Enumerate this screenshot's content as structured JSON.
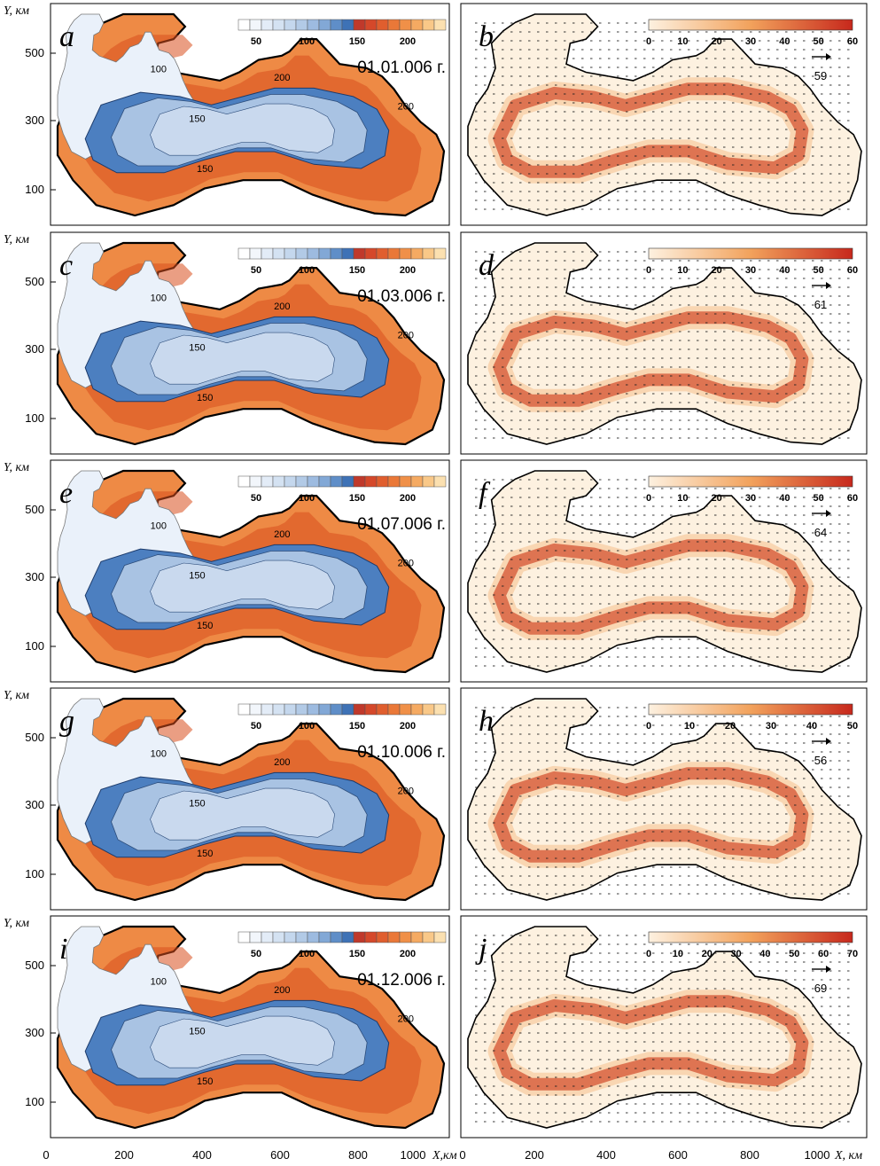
{
  "figure": {
    "y_axis_label": "Y, км",
    "x_axis_label_left": "X,км",
    "x_axis_label_right": "X, км",
    "x_ticks": [
      "0",
      "200",
      "400",
      "600",
      "800",
      "1000"
    ],
    "y_ticks": [
      "500",
      "300",
      "100"
    ]
  },
  "colors": {
    "cold": "#eaf1fa",
    "mid_blue": "#a9c3e3",
    "deep_blue": "#4c7fc0",
    "orange_dark": "#d94f1e",
    "orange": "#ee8a45",
    "orange_light": "#f6b878",
    "speed_low": "#fdf1e0",
    "speed_mid": "#f2a25c",
    "speed_high": "#c7281c"
  },
  "rows": [
    {
      "left_letter": "a",
      "right_letter": "b",
      "date": "01.01.006 г.",
      "vector_ref": "59",
      "cb_ticks": [
        "0",
        "10",
        "20",
        "30",
        "40",
        "50",
        "60"
      ]
    },
    {
      "left_letter": "c",
      "right_letter": "d",
      "date": "01.03.006 г.",
      "vector_ref": "61",
      "cb_ticks": [
        "0",
        "10",
        "20",
        "30",
        "40",
        "50",
        "60"
      ]
    },
    {
      "left_letter": "e",
      "right_letter": "f",
      "date": "01.07.006 г.",
      "vector_ref": "64",
      "cb_ticks": [
        "0",
        "10",
        "20",
        "30",
        "40",
        "50",
        "60"
      ]
    },
    {
      "left_letter": "g",
      "right_letter": "h",
      "date": "01.10.006 г.",
      "vector_ref": "56",
      "cb_ticks": [
        "0",
        "10",
        "20",
        "30",
        "40",
        "50"
      ]
    },
    {
      "left_letter": "i",
      "right_letter": "j",
      "date": "01.12.006 г.",
      "vector_ref": "69",
      "cb_ticks": [
        "0",
        "10",
        "20",
        "30",
        "40",
        "50",
        "60",
        "70"
      ]
    }
  ],
  "chart_data": [
    {
      "type": "heatmap",
      "description_of_fields": "Depth (m) contour maps of the Black Sea on five dates (left column)",
      "colorbar_ticks": [
        "50",
        "100",
        "150",
        "200"
      ],
      "contour_labels": [
        "100",
        "150",
        "200"
      ],
      "dates": [
        "01.01.006 г.",
        "01.03.006 г.",
        "01.07.006 г.",
        "01.10.006 г.",
        "01.12.006 г."
      ],
      "xlim": [
        0,
        1100
      ],
      "ylim": [
        0,
        600
      ]
    },
    {
      "type": "heatmap",
      "description_of_fields": "Current speed maps with velocity vectors (right column)",
      "reference_vectors": [
        59,
        61,
        64,
        56,
        69
      ],
      "colorbar_max": [
        60,
        60,
        60,
        50,
        70
      ],
      "xlim": [
        0,
        1100
      ],
      "ylim": [
        0,
        600
      ]
    }
  ]
}
